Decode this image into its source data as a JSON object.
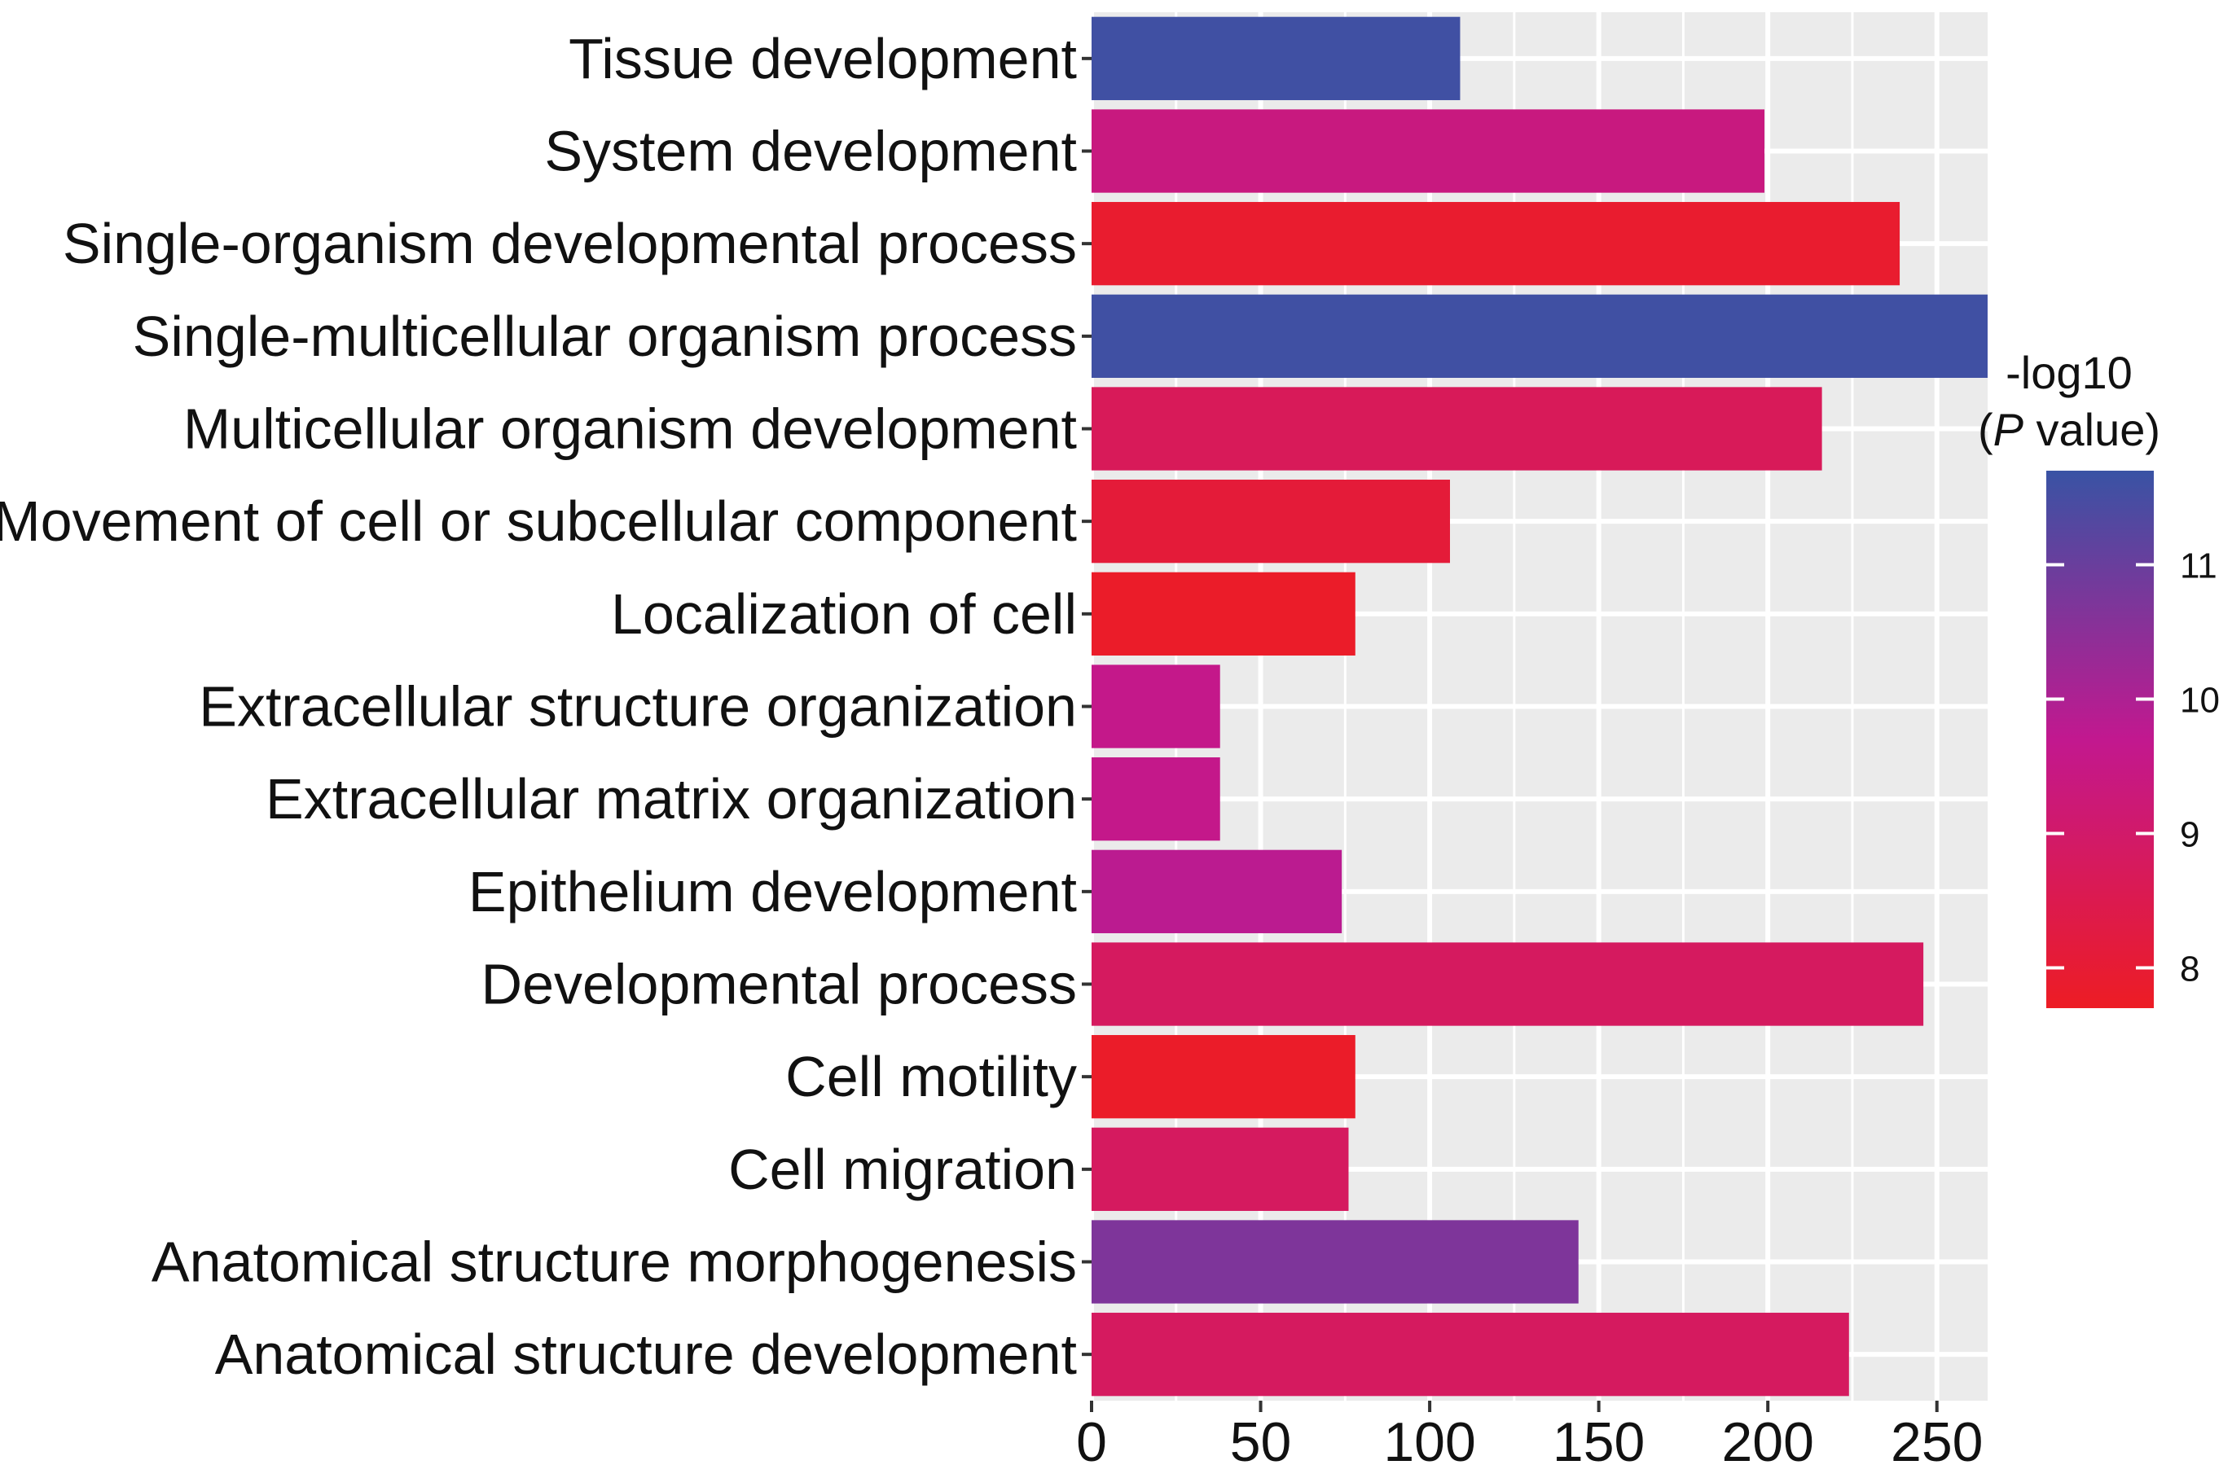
{
  "chart_data": {
    "type": "bar",
    "orientation": "horizontal",
    "title": "",
    "xlabel": "",
    "ylabel": "",
    "xlim": [
      0,
      265
    ],
    "x_ticks": [
      0,
      50,
      100,
      150,
      200,
      250
    ],
    "grid": true,
    "categories": [
      "Tissue development",
      "System development",
      "Single-organism developmental process",
      "Single-multicellular organism process",
      "Multicellular organism development",
      "Movement of cell or subcellular component",
      "Localization of cell",
      "Extracellular structure organization",
      "Extracellular matrix organization",
      "Epithelium development",
      "Developmental process",
      "Cell motility",
      "Cell migration",
      "Anatomical structure morphogenesis",
      "Anatomical structure development"
    ],
    "values": [
      109,
      199,
      239,
      266,
      216,
      106,
      78,
      38,
      38,
      74,
      246,
      78,
      76,
      144,
      224
    ],
    "neg_log10_p": [
      11.6,
      9.4,
      7.9,
      11.6,
      8.7,
      8.1,
      7.8,
      9.6,
      9.6,
      9.8,
      8.8,
      7.8,
      8.8,
      10.7,
      8.8
    ],
    "legend": {
      "title_line1": "-log10",
      "title_italic": "P",
      "title_rest": " value)",
      "title_open": "(",
      "placement": "right",
      "ticks": [
        8,
        9,
        10,
        11
      ],
      "range": [
        7.7,
        11.7
      ],
      "colors": {
        "low": "#ed1c24",
        "mid": "#c2188f",
        "high": "#3953a4"
      }
    },
    "panel_background": "#ebebeb",
    "grid_color": "#ffffff"
  }
}
